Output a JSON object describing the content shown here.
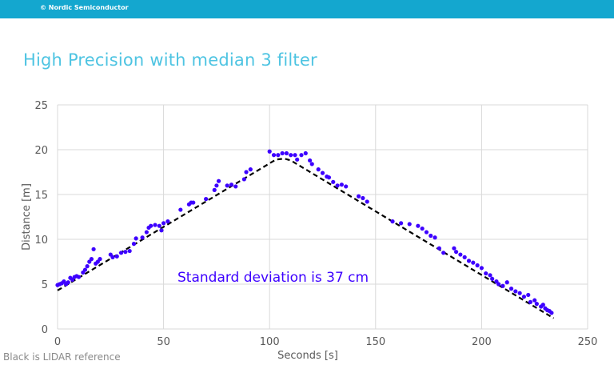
{
  "header": {
    "copyright": "© Nordic Semiconductor",
    "title": "High Precision with median 3 filter"
  },
  "footer_note": "Black is LIDAR reference",
  "chart_data": {
    "type": "scatter",
    "title": "",
    "xlabel": "Seconds [s]",
    "ylabel": "Distance [m]",
    "xlim": [
      0,
      250
    ],
    "ylim": [
      0,
      25
    ],
    "xticks": [
      0,
      50,
      100,
      150,
      200,
      250
    ],
    "yticks": [
      0,
      5,
      10,
      15,
      20,
      25
    ],
    "grid": true,
    "annotation": "Standard deviation is 37 cm",
    "colors": {
      "points": "#3d00ff",
      "reference": "#000000",
      "grid": "#d9d9d9",
      "annotation": "#3d00ff"
    },
    "reference_line": {
      "style": "dashed",
      "x": [
        0,
        103,
        107,
        110,
        234
      ],
      "y": [
        4.3,
        18.9,
        19.0,
        18.8,
        1.2
      ]
    },
    "points": {
      "x": [
        0,
        1,
        2,
        3,
        4,
        5,
        6,
        7,
        8,
        9,
        10,
        12,
        13,
        14,
        15,
        16,
        17,
        18,
        19,
        20,
        25,
        26,
        28,
        30,
        32,
        34,
        36,
        37,
        40,
        42,
        43,
        44,
        46,
        48,
        49,
        50,
        52,
        58,
        62,
        63,
        64,
        70,
        74,
        75,
        76,
        80,
        82,
        84,
        88,
        89,
        91,
        100,
        102,
        104,
        106,
        108,
        110,
        112,
        113,
        115,
        117,
        119,
        120,
        123,
        125,
        127,
        128,
        130,
        132,
        134,
        136,
        142,
        144,
        146,
        158,
        162,
        166,
        170,
        172,
        174,
        176,
        178,
        180,
        182,
        187,
        188,
        190,
        192,
        194,
        196,
        198,
        200,
        202,
        204,
        205,
        207,
        208,
        210,
        212,
        214,
        216,
        218,
        220,
        222,
        223,
        225,
        226,
        228,
        229,
        230,
        231,
        232,
        233
      ],
      "y": [
        4.9,
        5.0,
        5.1,
        5.3,
        5.0,
        5.2,
        5.7,
        5.5,
        5.8,
        5.9,
        5.8,
        6.3,
        6.6,
        7.0,
        7.5,
        7.8,
        8.9,
        7.3,
        7.5,
        7.8,
        8.3,
        8.0,
        8.1,
        8.5,
        8.6,
        8.7,
        9.5,
        10.1,
        10.2,
        10.8,
        11.3,
        11.5,
        11.6,
        11.5,
        11.0,
        11.8,
        12.0,
        13.3,
        13.9,
        14.1,
        14.1,
        14.5,
        15.5,
        16.0,
        16.5,
        16.0,
        16.1,
        15.9,
        16.7,
        17.5,
        17.8,
        19.8,
        19.4,
        19.4,
        19.6,
        19.6,
        19.4,
        19.4,
        18.9,
        19.4,
        19.6,
        18.8,
        18.4,
        17.8,
        17.4,
        17.0,
        16.9,
        16.4,
        16.0,
        16.1,
        15.9,
        14.8,
        14.6,
        14.2,
        12.0,
        11.8,
        11.7,
        11.5,
        11.2,
        10.8,
        10.4,
        10.2,
        9.0,
        8.5,
        9.0,
        8.6,
        8.3,
        8.0,
        7.6,
        7.4,
        7.1,
        6.8,
        6.2,
        6.0,
        5.6,
        5.3,
        5.0,
        4.8,
        5.2,
        4.5,
        4.2,
        4.0,
        3.6,
        3.8,
        3.0,
        3.2,
        2.8,
        2.5,
        2.7,
        2.3,
        2.1,
        2.0,
        1.8
      ]
    }
  }
}
